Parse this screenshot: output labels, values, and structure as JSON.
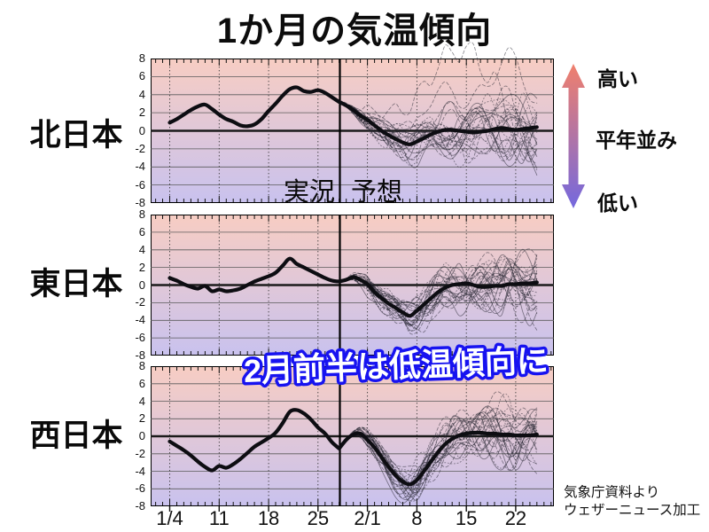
{
  "title": "1か月の気温傾向",
  "legend": {
    "observed": "実況",
    "forecast": "予想"
  },
  "caption": "2月前半は低温傾向に",
  "credit": {
    "line1": "気象庁資料より",
    "line2": "ウェザーニュース加工"
  },
  "arrow": {
    "top_label": "高い",
    "middle_label": "平年並み",
    "bottom_label": "低い",
    "top_color": "#f0806c",
    "bottom_color": "#7468de"
  },
  "colors": {
    "panel_top": "#f7cdc3",
    "panel_bottom": "#c9c2ee",
    "grid": "#5a5a5a",
    "zero_line": "#1b1b1b",
    "mean_line": "#0d0d12",
    "ensemble_line": "#23232e",
    "caption_fill": "#ffffff",
    "caption_stroke": "#1713f0"
  },
  "x_axis": {
    "tick_labels": [
      "1/4",
      "11",
      "18",
      "25",
      "2/1",
      "8",
      "15",
      "22"
    ],
    "tick_day_values": [
      0,
      7,
      14,
      21,
      28,
      35,
      42,
      49
    ],
    "note_day0": "1/4",
    "divider_day": 24.1
  },
  "y_axis": {
    "tick_labels": [
      "8",
      "6",
      "4",
      "2",
      "0",
      "-2",
      "-4",
      "-6",
      "-8"
    ],
    "min": -8,
    "max": 8
  },
  "chart_data": [
    {
      "type": "line",
      "region": "北日本",
      "ylim": [
        -8,
        8
      ],
      "x_unit": "days from Jan 4",
      "observed_start_day": 0,
      "observed": [
        0.9,
        1.3,
        1.8,
        2.3,
        2.7,
        2.9,
        2.4,
        1.8,
        1.3,
        1.0,
        0.6,
        0.5,
        0.7,
        1.3,
        2.2,
        3.0,
        3.9,
        4.6,
        4.8,
        4.4,
        4.3,
        4.5,
        4.2,
        3.7,
        3.2
      ],
      "forecast_start_day": 24,
      "forecast_mean": [
        3.2,
        2.8,
        2.3,
        1.7,
        1.2,
        0.6,
        0.0,
        -0.5,
        -0.9,
        -1.3,
        -1.5,
        -1.2,
        -0.8,
        -0.4,
        -0.1,
        0.1,
        0.1,
        0.0,
        -0.1,
        -0.2,
        -0.1,
        0.0,
        0.2,
        0.3,
        0.2,
        0.1,
        0.2,
        0.3,
        0.4
      ],
      "ensemble": {
        "members": 26,
        "spread_end": 2.9,
        "high_outliers": 2
      }
    },
    {
      "type": "line",
      "region": "東日本",
      "ylim": [
        -8,
        8
      ],
      "x_unit": "days from Jan 4",
      "observed_start_day": 0,
      "observed": [
        0.8,
        0.5,
        0.1,
        -0.2,
        -0.4,
        -0.1,
        -0.7,
        -0.5,
        -0.7,
        -0.6,
        -0.4,
        0.0,
        0.4,
        0.7,
        1.0,
        1.4,
        2.2,
        3.0,
        2.4,
        2.0,
        1.6,
        1.2,
        0.8,
        0.5,
        0.4
      ],
      "forecast_start_day": 24,
      "forecast_mean": [
        0.4,
        0.6,
        0.9,
        0.6,
        0.1,
        -0.8,
        -1.5,
        -2.1,
        -2.6,
        -3.1,
        -3.5,
        -2.9,
        -2.2,
        -1.5,
        -0.8,
        -0.3,
        0.0,
        0.1,
        0.2,
        0.0,
        -0.2,
        -0.2,
        -0.1,
        -0.1,
        0.1,
        0.1,
        0.2,
        0.2,
        0.3
      ],
      "ensemble": {
        "members": 26,
        "spread_end": 2.7,
        "high_outliers": 0
      }
    },
    {
      "type": "line",
      "region": "西日本",
      "ylim": [
        -8,
        8
      ],
      "x_unit": "days from Jan 4",
      "observed_start_day": 0,
      "observed": [
        -0.6,
        -1.1,
        -1.6,
        -2.2,
        -2.9,
        -3.5,
        -3.9,
        -3.4,
        -3.6,
        -3.2,
        -2.6,
        -1.9,
        -1.2,
        -0.7,
        -0.2,
        0.4,
        1.5,
        2.8,
        3.0,
        2.6,
        1.9,
        1.0,
        0.3,
        -0.7,
        -1.4
      ],
      "forecast_start_day": 24,
      "forecast_mean": [
        -1.4,
        -0.4,
        0.2,
        0.3,
        -0.4,
        -1.3,
        -2.4,
        -3.5,
        -4.5,
        -5.2,
        -5.5,
        -5.0,
        -4.0,
        -2.9,
        -1.8,
        -0.9,
        -0.3,
        0.1,
        0.3,
        0.4,
        0.4,
        0.3,
        0.3,
        0.2,
        0.2,
        0.1,
        0.1,
        0.1,
        0.2
      ],
      "ensemble": {
        "members": 26,
        "spread_end": 2.7,
        "low_outliers": 1
      }
    }
  ]
}
